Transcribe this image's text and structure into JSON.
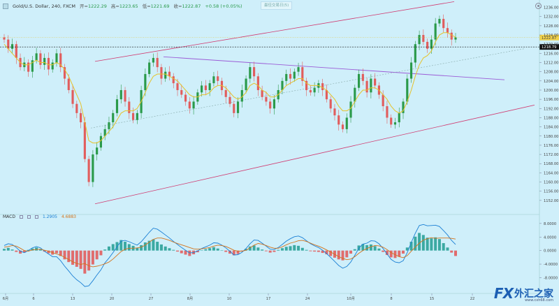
{
  "header": {
    "symbol": "Gold/U.S. Dollar, 240, FXCM",
    "open_label": "开=",
    "open": "1222.29",
    "high_label": "高=",
    "high": "1223.65",
    "low_label": "低=",
    "low": "1221.69",
    "close_label": "收=",
    "close": "1222.87",
    "change": "+0.58 (+0.05%)",
    "center_tag": "最佳交易日(5)"
  },
  "macd_header": {
    "label": "MACD",
    "value1": "1.2905",
    "value2": "4.6883"
  },
  "logo": {
    "mark": "FX",
    "name": "外汇之家",
    "site": "www.cxh68.com"
  },
  "colors": {
    "background": "#cfeffa",
    "up": "#2a9a4a",
    "down": "#e15d5d",
    "ma_yellow": "#e6c22a",
    "channel": "#d03a70",
    "resistance": "#9b5bd6",
    "macd_line": "#1a7fd4",
    "signal_line": "#d4731a",
    "hist_up": "#2aa198",
    "hist_down": "#e15d5d"
  },
  "chart_data": [
    {
      "type": "candlestick",
      "ylim": [
        1148,
        1238
      ],
      "yticks": [
        "1236.00",
        "1232.00",
        "1228.00",
        "1224.00",
        "1220.00",
        "1216.00",
        "1212.00",
        "1208.00",
        "1204.00",
        "1200.00",
        "1196.00",
        "1192.00",
        "1188.00",
        "1184.00",
        "1180.00",
        "1176.00",
        "1172.00",
        "1168.00",
        "1164.00",
        "1160.00",
        "1156.00",
        "1152.00"
      ],
      "xticks": [
        "6月",
        "6",
        "13",
        "20",
        "27",
        "8月",
        "10",
        "17",
        "24",
        "10月",
        "8",
        "15",
        "22"
      ],
      "last_price": "1222.87",
      "horizontal_level": "1218.79",
      "series": [
        {
          "name": "",
          "values": [
            1222,
            1218,
            1220,
            1214,
            1210,
            1212,
            1208,
            1213,
            1216,
            1211,
            1214,
            1209,
            1212,
            1216,
            1210,
            1205,
            1200,
            1194,
            1190,
            1186,
            1170,
            1160,
            1172,
            1175,
            1180,
            1183,
            1186,
            1190,
            1196,
            1200,
            1195,
            1190,
            1187,
            1190,
            1200,
            1207,
            1212,
            1214,
            1210,
            1205,
            1208,
            1206,
            1203,
            1200,
            1198,
            1195,
            1192,
            1195,
            1199,
            1202,
            1200,
            1203,
            1206,
            1204,
            1200,
            1197,
            1194,
            1190,
            1195,
            1200,
            1205,
            1210,
            1206,
            1200,
            1197,
            1195,
            1192,
            1196,
            1200,
            1204,
            1207,
            1205,
            1208,
            1210,
            1204,
            1200,
            1199,
            1201,
            1203,
            1200,
            1196,
            1192,
            1189,
            1185,
            1183,
            1188,
            1195,
            1201,
            1207,
            1204,
            1199,
            1205,
            1202,
            1198,
            1193,
            1188,
            1185,
            1186,
            1190,
            1195,
            1205,
            1212,
            1220,
            1224,
            1221,
            1218,
            1222,
            1229,
            1231,
            1227,
            1225,
            1222,
            1223
          ]
        },
        {
          "name": "",
          "values": [
            1220,
            1218,
            1216,
            1214,
            1212,
            1211,
            1211,
            1212,
            1213,
            1212,
            1212,
            1211,
            1211,
            1212,
            1211,
            1209,
            1206,
            1202,
            1198,
            1194,
            1186,
            1178,
            1177,
            1177,
            1178,
            1180,
            1182,
            1184,
            1187,
            1190,
            1191,
            1191,
            1191,
            1192,
            1195,
            1199,
            1203,
            1206,
            1207,
            1207,
            1207,
            1206,
            1205,
            1204,
            1202,
            1200,
            1198,
            1197,
            1197,
            1198,
            1198,
            1199,
            1201,
            1202,
            1202,
            1201,
            1199,
            1197,
            1196,
            1197,
            1199,
            1202,
            1203,
            1202,
            1200,
            1199,
            1197,
            1197,
            1198,
            1200,
            1202,
            1203,
            1204,
            1205,
            1205,
            1203,
            1202,
            1202,
            1202,
            1201,
            1200,
            1198,
            1196,
            1193,
            1191,
            1191,
            1192,
            1195,
            1198,
            1200,
            1200,
            1201,
            1201,
            1200,
            1198,
            1196,
            1193,
            1191,
            1190,
            1191,
            1195,
            1200,
            1206,
            1211,
            1214,
            1215,
            1217,
            1221,
            1224,
            1225,
            1225,
            1224,
            1223
          ]
        }
      ]
    },
    {
      "type": "bar",
      "title": "MACD",
      "ylim": [
        -11,
        9
      ],
      "yticks": [
        "8.0000",
        "4.0000",
        "0.0000",
        "-4.0000",
        "-8.0000"
      ],
      "series": [
        {
          "name": "histogram",
          "values": [
            0.5,
            0.8,
            0.3,
            -0.4,
            -0.9,
            -0.6,
            0.2,
            0.6,
            0.9,
            0.4,
            -0.3,
            -0.8,
            -1.2,
            -0.8,
            -1.6,
            -2.6,
            -3.4,
            -4.2,
            -4.8,
            -5.4,
            -6.8,
            -5.9,
            -4.1,
            -2.6,
            -1.4,
            0.3,
            1.2,
            1.9,
            2.5,
            3.1,
            2.6,
            1.9,
            1.4,
            0.8,
            1.6,
            2.4,
            2.9,
            3.3,
            2.6,
            1.8,
            1.2,
            0.7,
            0.2,
            -0.3,
            -0.8,
            -1.2,
            -1.6,
            -1.1,
            -0.5,
            0.1,
            0.4,
            0.7,
            1.0,
            0.6,
            0.1,
            -0.4,
            -0.9,
            -1.4,
            -1.0,
            -0.3,
            0.5,
            1.2,
            1.5,
            0.9,
            0.3,
            -0.2,
            -0.6,
            -0.4,
            0.2,
            0.7,
            1.1,
            1.3,
            1.6,
            1.4,
            0.8,
            0.2,
            -0.2,
            -0.3,
            -0.4,
            -0.7,
            -1.1,
            -1.6,
            -2.1,
            -2.6,
            -2.9,
            -2.0,
            -0.9,
            0.4,
            1.5,
            1.9,
            1.6,
            1.8,
            1.3,
            0.6,
            -0.4,
            -1.3,
            -2.0,
            -2.2,
            -1.8,
            -0.9,
            0.9,
            2.6,
            4.1,
            5.2,
            4.6,
            3.8,
            3.6,
            3.9,
            3.4,
            2.2,
            0.9,
            -0.6,
            -1.6
          ]
        },
        {
          "name": "macd",
          "values": [
            1.5,
            2.0,
            1.8,
            0.9,
            -0.2,
            -0.6,
            0.0,
            0.8,
            1.2,
            0.8,
            -0.2,
            -1.0,
            -1.8,
            -1.8,
            -3.0,
            -4.6,
            -6.0,
            -7.5,
            -8.6,
            -9.5,
            -10.6,
            -10.4,
            -8.9,
            -7.2,
            -5.7,
            -3.6,
            -2.2,
            -0.6,
            1.1,
            2.8,
            3.0,
            2.6,
            2.1,
            1.6,
            2.6,
            4.0,
            5.4,
            6.6,
            6.3,
            5.5,
            4.6,
            3.7,
            2.7,
            1.8,
            0.9,
            0.1,
            -0.7,
            -0.6,
            -0.1,
            0.6,
            1.1,
            1.6,
            2.3,
            2.2,
            1.6,
            0.8,
            -0.2,
            -1.3,
            -1.2,
            -0.5,
            0.6,
            2.0,
            3.1,
            3.0,
            2.2,
            1.3,
            0.4,
            0.3,
            0.9,
            1.8,
            2.8,
            3.5,
            4.1,
            4.3,
            3.8,
            2.9,
            2.0,
            1.4,
            0.9,
            0.1,
            -0.9,
            -2.0,
            -3.2,
            -4.4,
            -5.2,
            -4.7,
            -3.4,
            -1.4,
            0.7,
            1.9,
            2.2,
            2.9,
            2.8,
            2.0,
            0.6,
            -1.0,
            -2.6,
            -3.4,
            -3.6,
            -3.0,
            -0.6,
            2.4,
            5.1,
            7.4,
            7.7,
            7.3,
            7.4,
            7.5,
            7.1,
            5.9,
            4.6,
            3.0,
            1.8
          ]
        },
        {
          "name": "signal",
          "values": [
            1.0,
            1.2,
            1.5,
            1.3,
            0.7,
            0.0,
            -0.2,
            0.2,
            0.3,
            0.4,
            0.1,
            -0.2,
            -0.6,
            -1.0,
            -1.4,
            -2.0,
            -2.6,
            -3.3,
            -3.8,
            -4.1,
            -3.8,
            -4.5,
            -4.8,
            -4.6,
            -4.3,
            -3.9,
            -3.4,
            -2.5,
            -1.4,
            -0.3,
            0.4,
            0.7,
            0.7,
            0.8,
            1.0,
            1.6,
            2.5,
            3.3,
            3.7,
            3.7,
            3.4,
            3.0,
            2.5,
            2.1,
            1.7,
            1.3,
            0.9,
            0.5,
            0.4,
            0.5,
            0.7,
            0.9,
            1.3,
            1.6,
            1.5,
            1.2,
            0.7,
            0.1,
            -0.2,
            -0.2,
            0.1,
            0.8,
            1.6,
            2.1,
            1.9,
            1.5,
            1.0,
            0.7,
            0.7,
            1.1,
            1.7,
            2.2,
            2.5,
            2.9,
            3.0,
            2.7,
            2.2,
            1.7,
            1.3,
            0.8,
            0.2,
            -0.4,
            -1.1,
            -1.8,
            -2.3,
            -2.7,
            -2.5,
            -1.8,
            -0.8,
            0.0,
            0.6,
            1.1,
            1.5,
            1.4,
            1.0,
            0.3,
            -0.6,
            -1.2,
            -1.8,
            -2.1,
            -1.5,
            -0.2,
            1.0,
            2.2,
            3.1,
            3.5,
            3.8,
            3.6,
            3.7,
            3.7,
            3.7,
            3.6,
            3.4
          ]
        }
      ]
    }
  ]
}
